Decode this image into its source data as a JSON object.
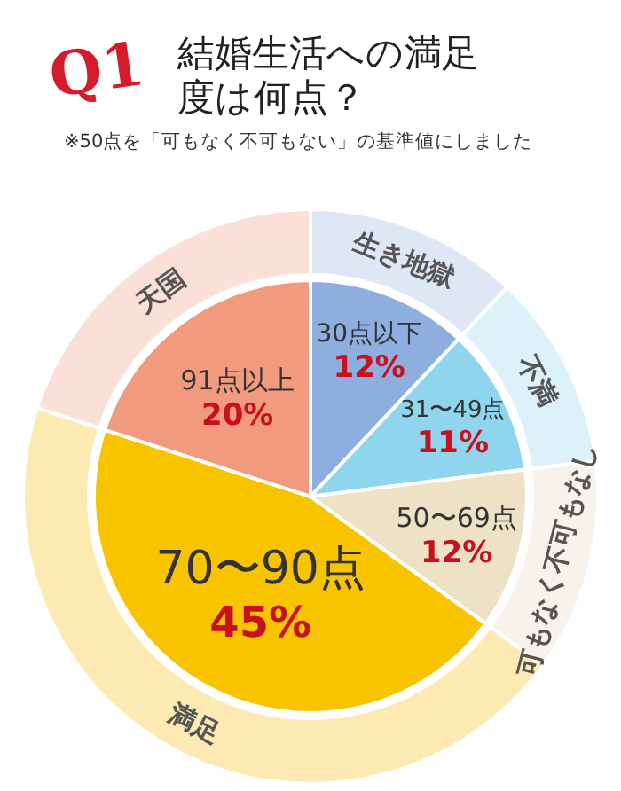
{
  "chart_data": {
    "type": "donut",
    "title": "結婚生活への満足度は何点？",
    "subtitle": "※50点を「可もなく不可もない」の基準値にしました",
    "annotations": [
      "Q1",
      {
        "text": "生き地獄",
        "x": "30点以下"
      },
      {
        "text": "不満",
        "x": "31〜49点"
      },
      {
        "text": "可もなく不可もなし",
        "x": "50〜69点"
      },
      {
        "text": "満足",
        "x": "70〜90点"
      },
      {
        "text": "天国",
        "x": "91点以上"
      }
    ],
    "categories": [
      "30点以下",
      "31〜49点",
      "50〜69点",
      "70〜90点",
      "91点以上"
    ],
    "series": [
      {
        "values": [
          12,
          11,
          12,
          45,
          20
        ],
        "colors": [
          "#dde7f6",
          "#dcf1fa",
          "#f8f3ea",
          "#fdeab2",
          "#fbe0d8"
        ]
      },
      {
        "values": [
          12,
          11,
          12,
          45,
          20
        ],
        "colors": [
          "#8eaee0",
          "#8fd5ee",
          "#ede1c6",
          "#f8c400",
          "#f19a7d"
        ],
        "value_labels": [
          "12%",
          "11%",
          "12%",
          "45%",
          "20%"
        ]
      }
    ]
  }
}
